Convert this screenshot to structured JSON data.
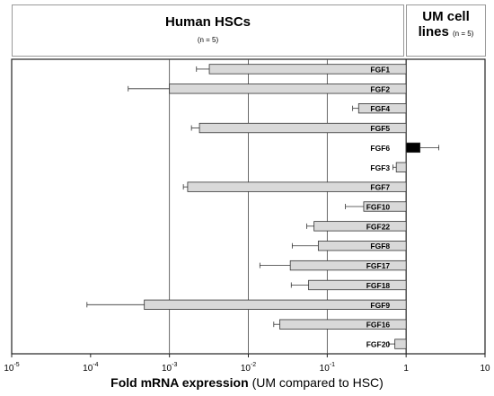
{
  "header": {
    "left_title": "Human HSCs",
    "left_n": "(n = 5)",
    "right_title_line1": "UM cell",
    "right_title_line2": "lines",
    "right_n": "(n = 5)"
  },
  "chart_data": {
    "type": "bar",
    "orientation": "horizontal",
    "xscale": "log",
    "xlim": [
      1e-05,
      10
    ],
    "x_ticks": [
      {
        "value": 1e-05,
        "base": "10",
        "exp": "-5"
      },
      {
        "value": 0.0001,
        "base": "10",
        "exp": "-4"
      },
      {
        "value": 0.001,
        "base": "10",
        "exp": "-3"
      },
      {
        "value": 0.01,
        "base": "10",
        "exp": "-2"
      },
      {
        "value": 0.1,
        "base": "10",
        "exp": "-1"
      },
      {
        "value": 1,
        "base": "1",
        "exp": ""
      },
      {
        "value": 10,
        "base": "10",
        "exp": ""
      }
    ],
    "gridlines_at": [
      0.001,
      0.01,
      0.1
    ],
    "baseline": 1,
    "xlabel_bold": "Fold mRNA expression",
    "xlabel_rest": "(UM compared to HSC)",
    "colors": {
      "bar": "#d9d9d9",
      "highlight": "#000000"
    },
    "categories": [
      "FGF1",
      "FGF2",
      "FGF4",
      "FGF5",
      "FGF6",
      "FGF3",
      "FGF7",
      "FGF10",
      "FGF22",
      "FGF8",
      "FGF17",
      "FGF18",
      "FGF9",
      "FGF16",
      "FGF20"
    ],
    "values": [
      0.0032,
      0.001,
      0.25,
      0.0024,
      1.5,
      0.75,
      0.0017,
      0.29,
      0.068,
      0.077,
      0.034,
      0.058,
      0.00048,
      0.025,
      0.72
    ],
    "err_outer": [
      0.0022,
      0.0003,
      0.21,
      0.0019,
      2.6,
      0.68,
      0.0015,
      0.17,
      0.055,
      0.036,
      0.014,
      0.035,
      9e-05,
      0.021,
      0.6
    ],
    "highlight": [
      false,
      false,
      false,
      false,
      true,
      false,
      false,
      false,
      false,
      false,
      false,
      false,
      false,
      false,
      false
    ]
  }
}
